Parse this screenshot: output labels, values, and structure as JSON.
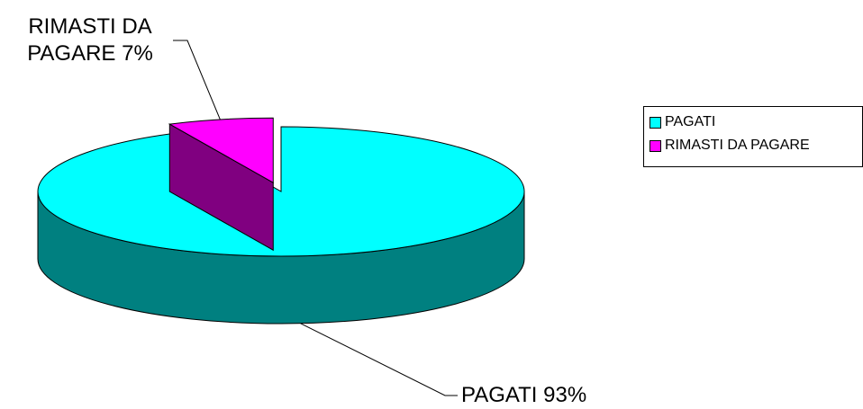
{
  "chart_data": {
    "type": "pie",
    "three_d": true,
    "categories": [
      "PAGATI",
      "RIMASTI DA PAGARE"
    ],
    "values": [
      93,
      7
    ],
    "value_labels": [
      "PAGATI 93%",
      "RIMASTI DA PAGARE 7%"
    ],
    "colors": [
      "#00ffff",
      "#ff00ff"
    ],
    "side_colors": [
      "#008080",
      "#800080"
    ],
    "legend": "right"
  }
}
